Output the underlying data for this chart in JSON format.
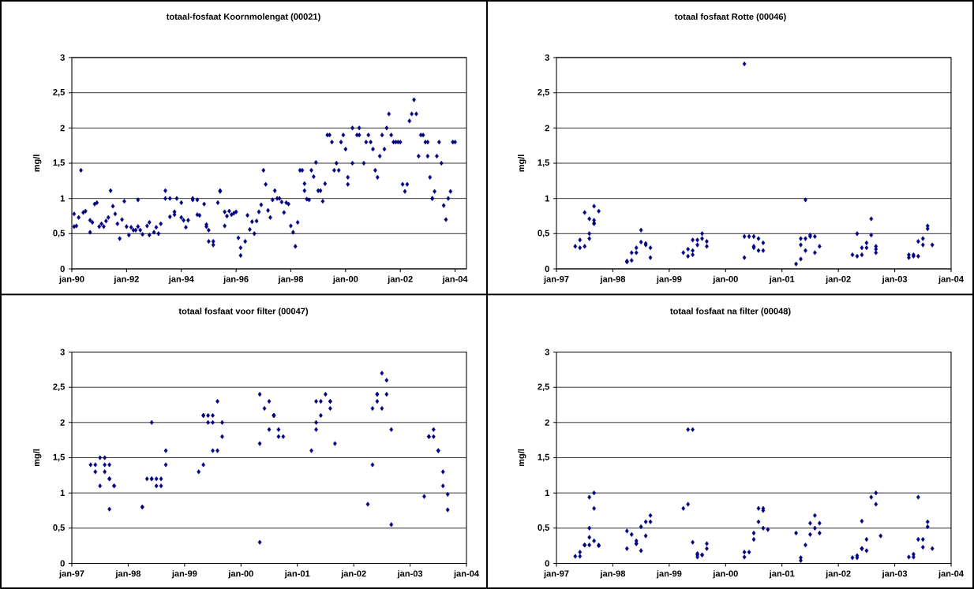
{
  "chart_data": [
    {
      "type": "scatter",
      "title": "totaal-fosfaat Koornmolengat (00021)",
      "ylabel": "mg/l",
      "color": "#000080",
      "marker": "diamond",
      "grid": "y",
      "xlim": [
        "1990-01",
        "2004-06"
      ],
      "ylim": [
        0,
        3
      ],
      "xticks": [
        {
          "value": "1990-01",
          "label": "jan-90"
        },
        {
          "value": "1992-01",
          "label": "jan-92"
        },
        {
          "value": "1994-01",
          "label": "jan-94"
        },
        {
          "value": "1996-01",
          "label": "jan-96"
        },
        {
          "value": "1998-01",
          "label": "jan-98"
        },
        {
          "value": "2000-01",
          "label": "jan-00"
        },
        {
          "value": "2002-01",
          "label": "jan-02"
        },
        {
          "value": "2004-01",
          "label": "jan-04"
        }
      ],
      "yticks": [
        0,
        {
          "value": 0.5,
          "label": "0,5"
        },
        1,
        {
          "value": 1.5,
          "label": "1,5"
        },
        2,
        {
          "value": 2.5,
          "label": "2,5"
        },
        3
      ],
      "x": [
        "1990-02",
        "1990-02",
        "1990-03",
        "1990-04",
        "1990-05",
        "1990-06",
        "1990-07",
        "1990-09",
        "1990-09",
        "1990-10",
        "1990-11",
        "1990-12",
        "1991-01",
        "1991-02",
        "1991-03",
        "1991-04",
        "1991-05",
        "1991-06",
        "1991-07",
        "1991-08",
        "1991-09",
        "1991-10",
        "1991-11",
        "1991-12",
        "1992-01",
        "1992-02",
        "1992-03",
        "1992-04",
        "1992-05",
        "1992-06",
        "1992-06",
        "1992-07",
        "1992-08",
        "1992-10",
        "1992-11",
        "1992-11",
        "1993-01",
        "1993-02",
        "1993-03",
        "1993-04",
        "1993-06",
        "1993-06",
        "1993-08",
        "1993-08",
        "1993-10",
        "1993-10",
        "1993-11",
        "1994-01",
        "1994-01",
        "1994-02",
        "1994-03",
        "1994-04",
        "1994-06",
        "1994-06",
        "1994-08",
        "1994-08",
        "1994-09",
        "1994-11",
        "1994-12",
        "1994-12",
        "1995-01",
        "1995-01",
        "1995-03",
        "1995-03",
        "1995-05",
        "1995-06",
        "1995-06",
        "1995-08",
        "1995-08",
        "1995-09",
        "1995-10",
        "1995-11",
        "1995-12",
        "1996-01",
        "1996-02",
        "1996-03",
        "1996-03",
        "1996-05",
        "1996-06",
        "1996-07",
        "1996-08",
        "1996-09",
        "1996-10",
        "1996-11",
        "1996-12",
        "1997-01",
        "1997-02",
        "1997-03",
        "1997-04",
        "1997-05",
        "1997-06",
        "1997-07",
        "1997-08",
        "1997-09",
        "1997-10",
        "1997-11",
        "1997-12",
        "1998-01",
        "1998-02",
        "1998-03",
        "1998-04",
        "1998-05",
        "1998-06",
        "1998-07",
        "1998-07",
        "1998-08",
        "1998-09",
        "1998-10",
        "1998-11",
        "1998-12",
        "1999-01",
        "1999-02",
        "1999-03",
        "1999-04",
        "1999-05",
        "1999-06",
        "1999-07",
        "1999-08",
        "1999-09",
        "1999-10",
        "1999-11",
        "1999-12",
        "2000-01",
        "2000-02",
        "2000-02",
        "2000-04",
        "2000-04",
        "2000-06",
        "2000-07",
        "2000-07",
        "2000-09",
        "2000-10",
        "2000-11",
        "2000-12",
        "2001-01",
        "2001-02",
        "2001-03",
        "2001-04",
        "2001-05",
        "2001-06",
        "2001-07",
        "2001-08",
        "2001-09",
        "2001-10",
        "2001-11",
        "2001-12",
        "2002-01",
        "2002-02",
        "2002-03",
        "2002-04",
        "2002-05",
        "2002-06",
        "2002-07",
        "2002-08",
        "2002-09",
        "2002-10",
        "2002-11",
        "2002-12",
        "2003-01",
        "2003-01",
        "2003-02",
        "2003-03",
        "2003-03",
        "2003-04",
        "2003-05",
        "2003-06",
        "2003-07",
        "2003-08",
        "2003-09",
        "2003-10",
        "2003-11",
        "2003-12",
        "2004-01"
      ],
      "values": [
        0.78,
        0.6,
        0.61,
        0.73,
        1.4,
        0.8,
        0.82,
        0.69,
        0.52,
        0.66,
        0.92,
        0.94,
        0.6,
        0.64,
        0.6,
        0.68,
        0.73,
        1.11,
        0.89,
        0.78,
        0.64,
        0.43,
        0.7,
        0.96,
        0.6,
        0.48,
        0.59,
        0.55,
        0.55,
        0.98,
        0.6,
        0.55,
        0.49,
        0.61,
        0.48,
        0.66,
        0.52,
        0.59,
        0.5,
        0.64,
        1.0,
        1.11,
        1.0,
        0.74,
        0.81,
        0.77,
        1.0,
        0.94,
        0.73,
        0.69,
        0.59,
        0.69,
        0.98,
        1.0,
        0.98,
        0.77,
        0.76,
        0.92,
        0.63,
        0.6,
        0.55,
        0.39,
        0.34,
        0.39,
        0.94,
        1.11,
        1.1,
        0.81,
        0.61,
        0.75,
        0.82,
        0.77,
        0.79,
        0.81,
        0.44,
        0.3,
        0.19,
        0.39,
        0.76,
        0.56,
        0.67,
        0.5,
        0.68,
        0.81,
        0.91,
        1.4,
        1.2,
        0.83,
        0.73,
        0.98,
        1.11,
        1.0,
        1.0,
        0.95,
        0.8,
        0.94,
        0.92,
        0.61,
        0.52,
        0.32,
        0.66,
        1.4,
        1.4,
        1.11,
        1.21,
        0.99,
        0.98,
        1.4,
        1.31,
        1.51,
        1.11,
        1.11,
        0.96,
        1.21,
        1.9,
        1.9,
        1.8,
        1.4,
        1.5,
        1.4,
        1.8,
        1.9,
        1.7,
        1.3,
        1.2,
        1.5,
        2.0,
        1.9,
        1.9,
        2.0,
        1.5,
        1.8,
        1.9,
        1.8,
        1.7,
        1.4,
        1.3,
        1.6,
        1.9,
        1.7,
        2.0,
        2.2,
        1.9,
        1.8,
        1.8,
        1.8,
        1.8,
        1.2,
        1.1,
        1.2,
        2.1,
        2.2,
        2.4,
        2.2,
        1.6,
        1.9,
        1.9,
        1.8,
        1.8,
        1.6,
        1.3,
        1.0,
        1.0,
        1.1,
        1.6,
        1.8,
        1.5,
        0.9,
        0.7,
        1.0,
        1.1,
        1.8,
        1.8
      ]
    },
    {
      "type": "scatter",
      "title": "totaal fosfaat Rotte (00046)",
      "ylabel": "mg/l",
      "color": "#000080",
      "marker": "diamond",
      "grid": "y",
      "xlim": [
        "1997-01",
        "2004-01"
      ],
      "ylim": [
        0,
        3
      ],
      "xticks": [
        {
          "value": "1997-01",
          "label": "jan-97"
        },
        {
          "value": "1998-01",
          "label": "jan-98"
        },
        {
          "value": "1999-01",
          "label": "jan-99"
        },
        {
          "value": "2000-01",
          "label": "jan-00"
        },
        {
          "value": "2001-01",
          "label": "jan-01"
        },
        {
          "value": "2002-01",
          "label": "jan-02"
        },
        {
          "value": "2003-01",
          "label": "jan-03"
        },
        {
          "value": "2004-01",
          "label": "jan-04"
        }
      ],
      "yticks": [
        0,
        {
          "value": 0.5,
          "label": "0,5"
        },
        1,
        {
          "value": 1.5,
          "label": "1,5"
        },
        2,
        {
          "value": 2.5,
          "label": "2,5"
        },
        3
      ],
      "x": [
        "1997-05",
        "1997-06",
        "1997-06",
        "1997-07",
        "1997-07",
        "1997-08",
        "1997-08",
        "1997-08",
        "1997-09",
        "1997-09",
        "1997-09",
        "1997-09",
        "1997-10",
        "1998-04",
        "1998-04",
        "1998-04",
        "1998-05",
        "1998-05",
        "1998-06",
        "1998-06",
        "1998-07",
        "1998-07",
        "1998-08",
        "1998-08",
        "1998-09",
        "1998-09",
        "1999-04",
        "1999-05",
        "1999-05",
        "1999-06",
        "1999-06",
        "1999-06",
        "1999-07",
        "1999-07",
        "1999-08",
        "1999-08",
        "1999-09",
        "1999-09",
        "2000-05",
        "2000-05",
        "2000-05",
        "2000-06",
        "2000-07",
        "2000-07",
        "2000-07",
        "2000-08",
        "2000-08",
        "2000-09",
        "2000-09",
        "2001-04",
        "2001-05",
        "2001-05",
        "2001-05",
        "2001-06",
        "2001-06",
        "2001-06",
        "2001-07",
        "2001-07",
        "2001-08",
        "2001-08",
        "2001-09",
        "2002-04",
        "2002-05",
        "2002-05",
        "2002-06",
        "2002-06",
        "2002-07",
        "2002-07",
        "2002-08",
        "2002-08",
        "2002-09",
        "2002-09",
        "2002-09",
        "2003-04",
        "2003-04",
        "2003-05",
        "2003-05",
        "2003-06",
        "2003-06",
        "2003-07",
        "2003-07",
        "2003-08",
        "2003-08",
        "2003-09"
      ],
      "values": [
        0.32,
        0.41,
        0.3,
        0.32,
        0.8,
        0.43,
        0.5,
        0.71,
        0.65,
        0.64,
        0.89,
        0.69,
        0.82,
        0.1,
        0.1,
        0.11,
        0.12,
        0.23,
        0.3,
        0.23,
        0.38,
        0.55,
        0.36,
        0.34,
        0.3,
        0.16,
        0.23,
        0.18,
        0.28,
        0.26,
        0.2,
        0.41,
        0.34,
        0.41,
        0.5,
        0.43,
        0.32,
        0.39,
        0.16,
        2.91,
        0.46,
        0.46,
        0.32,
        0.46,
        0.3,
        0.43,
        0.26,
        0.37,
        0.26,
        0.07,
        0.14,
        0.34,
        0.43,
        0.43,
        0.26,
        0.98,
        0.48,
        0.46,
        0.46,
        0.23,
        0.32,
        0.2,
        0.18,
        0.5,
        0.2,
        0.3,
        0.3,
        0.37,
        0.71,
        0.48,
        0.23,
        0.28,
        0.32,
        0.2,
        0.16,
        0.18,
        0.2,
        0.18,
        0.39,
        0.34,
        0.43,
        0.57,
        0.61,
        0.34
      ]
    },
    {
      "type": "scatter",
      "title": "totaal fosfaat voor filter (00047)",
      "ylabel": "mg/l",
      "color": "#000080",
      "marker": "diamond",
      "grid": "y",
      "xlim": [
        "1997-01",
        "2004-01"
      ],
      "ylim": [
        0,
        3
      ],
      "xticks": [
        {
          "value": "1997-01",
          "label": "jan-97"
        },
        {
          "value": "1998-01",
          "label": "jan-98"
        },
        {
          "value": "1999-01",
          "label": "jan-99"
        },
        {
          "value": "2000-01",
          "label": "jan-00"
        },
        {
          "value": "2001-01",
          "label": "jan-01"
        },
        {
          "value": "2002-01",
          "label": "jan-02"
        },
        {
          "value": "2003-01",
          "label": "jan-03"
        },
        {
          "value": "2004-01",
          "label": "jan-04"
        }
      ],
      "yticks": [
        0,
        {
          "value": 0.5,
          "label": "0,5"
        },
        1,
        {
          "value": 1.5,
          "label": "1,5"
        },
        2,
        {
          "value": 2.5,
          "label": "2,5"
        },
        3
      ],
      "x": [
        "1997-05",
        "1997-06",
        "1997-06",
        "1997-07",
        "1997-07",
        "1997-08",
        "1997-08",
        "1997-08",
        "1997-09",
        "1997-09",
        "1997-09",
        "1997-09",
        "1997-10",
        "1997-10",
        "1998-04",
        "1998-04",
        "1998-05",
        "1998-06",
        "1998-06",
        "1998-06",
        "1998-07",
        "1998-07",
        "1998-08",
        "1998-08",
        "1998-09",
        "1998-09",
        "1999-04",
        "1999-05",
        "1999-05",
        "1999-05",
        "1999-06",
        "1999-06",
        "1999-07",
        "1999-07",
        "1999-07",
        "1999-08",
        "1999-08",
        "1999-09",
        "1999-09",
        "2000-05",
        "2000-05",
        "2000-05",
        "2000-06",
        "2000-07",
        "2000-07",
        "2000-08",
        "2000-08",
        "2000-08",
        "2000-09",
        "2000-09",
        "2000-10",
        "2001-04",
        "2001-05",
        "2001-05",
        "2001-05",
        "2001-06",
        "2001-06",
        "2001-07",
        "2001-08",
        "2001-08",
        "2001-08",
        "2001-09",
        "2002-04",
        "2002-05",
        "2002-05",
        "2002-06",
        "2002-06",
        "2002-06",
        "2002-07",
        "2002-07",
        "2002-08",
        "2002-08",
        "2002-09",
        "2002-09",
        "2003-04",
        "2003-05",
        "2003-05",
        "2003-06",
        "2003-06",
        "2003-07",
        "2003-07",
        "2003-08",
        "2003-08",
        "2003-09",
        "2003-09"
      ],
      "values": [
        1.4,
        1.3,
        1.4,
        1.1,
        1.5,
        1.5,
        1.4,
        1.3,
        1.2,
        1.2,
        1.4,
        0.77,
        1.1,
        1.1,
        0.8,
        0.8,
        1.2,
        2.0,
        1.2,
        1.2,
        1.2,
        1.1,
        1.2,
        1.1,
        1.6,
        1.4,
        1.3,
        1.4,
        2.1,
        2.1,
        2.0,
        2.1,
        1.6,
        2.0,
        2.1,
        2.3,
        1.6,
        2.0,
        1.8,
        1.7,
        0.3,
        2.4,
        2.2,
        2.3,
        1.9,
        2.1,
        2.1,
        2.1,
        1.9,
        1.8,
        1.8,
        1.6,
        2.0,
        1.9,
        2.3,
        2.3,
        2.1,
        2.4,
        2.3,
        2.3,
        2.2,
        1.7,
        0.84,
        1.4,
        2.2,
        2.4,
        2.4,
        2.3,
        2.7,
        2.2,
        2.4,
        2.6,
        1.9,
        0.55,
        0.95,
        1.8,
        1.8,
        1.8,
        1.9,
        1.6,
        1.6,
        1.3,
        1.1,
        0.98,
        0.76
      ]
    },
    {
      "type": "scatter",
      "title": "totaal fosfaat na filter (00048)",
      "ylabel": "mg/l",
      "color": "#000080",
      "marker": "diamond",
      "grid": "y",
      "xlim": [
        "1997-01",
        "2004-01"
      ],
      "ylim": [
        0,
        3
      ],
      "xticks": [
        {
          "value": "1997-01",
          "label": "jan-97"
        },
        {
          "value": "1998-01",
          "label": "jan-98"
        },
        {
          "value": "1999-01",
          "label": "jan-99"
        },
        {
          "value": "2000-01",
          "label": "jan-00"
        },
        {
          "value": "2001-01",
          "label": "jan-01"
        },
        {
          "value": "2002-01",
          "label": "jan-02"
        },
        {
          "value": "2003-01",
          "label": "jan-03"
        },
        {
          "value": "2004-01",
          "label": "jan-04"
        }
      ],
      "yticks": [
        0,
        {
          "value": 0.5,
          "label": "0,5"
        },
        1,
        {
          "value": 1.5,
          "label": "1,5"
        },
        2,
        {
          "value": 2.5,
          "label": "2,5"
        },
        3
      ],
      "x": [
        "1997-05",
        "1997-06",
        "1997-06",
        "1997-07",
        "1997-07",
        "1997-08",
        "1997-08",
        "1997-08",
        "1997-08",
        "1997-09",
        "1997-09",
        "1997-09",
        "1997-10",
        "1997-10",
        "1998-04",
        "1998-04",
        "1998-05",
        "1998-06",
        "1998-06",
        "1998-06",
        "1998-07",
        "1998-07",
        "1998-08",
        "1998-08",
        "1998-09",
        "1998-09",
        "1999-04",
        "1999-05",
        "1999-05",
        "1999-06",
        "1999-06",
        "1999-07",
        "1999-07",
        "1999-07",
        "1999-08",
        "1999-08",
        "1999-09",
        "1999-09",
        "2000-05",
        "2000-05",
        "2000-06",
        "2000-07",
        "2000-07",
        "2000-08",
        "2000-08",
        "2000-09",
        "2000-09",
        "2000-09",
        "2000-10",
        "2001-04",
        "2001-05",
        "2001-05",
        "2001-06",
        "2001-07",
        "2001-07",
        "2001-08",
        "2001-08",
        "2001-09",
        "2001-09",
        "2002-04",
        "2002-05",
        "2002-05",
        "2002-06",
        "2002-06",
        "2002-06",
        "2002-07",
        "2002-07",
        "2002-08",
        "2002-09",
        "2002-09",
        "2002-10",
        "2003-04",
        "2003-05",
        "2003-05",
        "2003-06",
        "2003-06",
        "2003-07",
        "2003-07",
        "2003-08",
        "2003-08",
        "2003-09"
      ],
      "values": [
        0.1,
        0.16,
        0.1,
        0.26,
        0.26,
        0.26,
        0.5,
        0.37,
        0.94,
        1.0,
        0.78,
        0.32,
        0.26,
        0.25,
        0.46,
        0.21,
        0.41,
        0.32,
        0.28,
        0.28,
        0.18,
        0.52,
        0.59,
        0.39,
        0.68,
        0.59,
        0.78,
        0.84,
        1.9,
        1.9,
        0.3,
        0.14,
        0.12,
        0.09,
        0.12,
        0.12,
        0.21,
        0.28,
        0.09,
        0.16,
        0.16,
        0.43,
        0.34,
        0.78,
        0.59,
        0.78,
        0.75,
        0.5,
        0.48,
        0.43,
        0.04,
        0.08,
        0.26,
        0.41,
        0.57,
        0.5,
        0.68,
        0.43,
        0.57,
        0.08,
        0.08,
        0.11,
        0.21,
        0.21,
        0.6,
        0.18,
        0.34,
        0.94,
        1.0,
        0.84,
        0.39,
        0.09,
        0.09,
        0.13,
        0.94,
        0.34,
        0.23,
        0.34,
        0.52,
        0.59,
        0.21
      ]
    }
  ]
}
